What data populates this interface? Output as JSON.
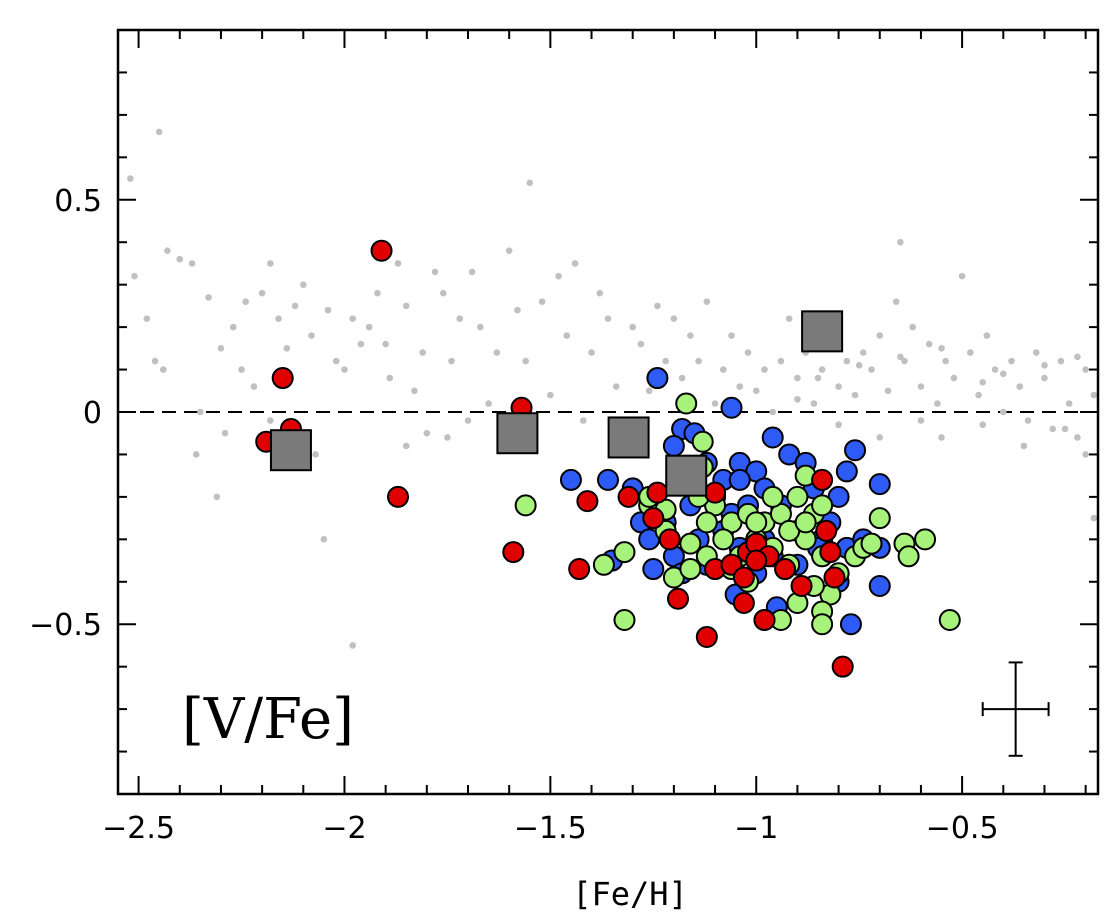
{
  "chart_data": {
    "type": "scatter",
    "title": "",
    "xlabel": "[Fe/H]",
    "ylabel": "",
    "panel_label": "[V/Fe]",
    "xlim": [
      -2.55,
      -0.17
    ],
    "ylim": [
      -0.9,
      0.9
    ],
    "x_ticks": [
      -2.5,
      -2,
      -1.5,
      -1,
      -0.5
    ],
    "x_tick_labels": [
      "−2.5",
      "−2",
      "−1.5",
      "−1",
      "−0.5"
    ],
    "y_ticks": [
      -0.5,
      0,
      0.5
    ],
    "y_tick_labels": [
      "−0.5",
      "0",
      "0.5"
    ],
    "reference_line": {
      "y": 0,
      "style": "dashed"
    },
    "error_bar": {
      "x": -0.37,
      "y": -0.7,
      "xerr": 0.08,
      "yerr": 0.11
    },
    "colors": {
      "background_field": "#c0c0c0",
      "blue": "#2e5bf5",
      "green": "#a6f27a",
      "red": "#e00000",
      "grey_square": "#7a7a7a"
    },
    "series": [
      {
        "marker": "small-dot",
        "color": "#c0c0c0",
        "points": [
          [
            -2.45,
            0.66
          ],
          [
            -2.52,
            0.55
          ],
          [
            -2.51,
            0.32
          ],
          [
            -2.48,
            0.22
          ],
          [
            -2.46,
            0.12
          ],
          [
            -2.44,
            0.1
          ],
          [
            -2.43,
            0.38
          ],
          [
            -2.4,
            0.36
          ],
          [
            -2.37,
            0.35
          ],
          [
            -2.35,
            0.0
          ],
          [
            -2.33,
            0.27
          ],
          [
            -2.3,
            0.15
          ],
          [
            -2.29,
            -0.05
          ],
          [
            -2.31,
            -0.2
          ],
          [
            -2.27,
            0.2
          ],
          [
            -2.25,
            0.1
          ],
          [
            -2.22,
            0.06
          ],
          [
            -2.2,
            0.28
          ],
          [
            -2.18,
            0.35
          ],
          [
            -2.16,
            0.22
          ],
          [
            -2.14,
            0.15
          ],
          [
            -2.12,
            0.25
          ],
          [
            -2.1,
            0.3
          ],
          [
            -2.08,
            0.18
          ],
          [
            -2.07,
            -0.1
          ],
          [
            -2.05,
            -0.3
          ],
          [
            -2.04,
            0.24
          ],
          [
            -2.02,
            0.12
          ],
          [
            -2.0,
            0.1
          ],
          [
            -1.98,
            0.22
          ],
          [
            -1.96,
            0.16
          ],
          [
            -1.94,
            0.2
          ],
          [
            -1.92,
            0.28
          ],
          [
            -1.9,
            0.16
          ],
          [
            -1.89,
            0.08
          ],
          [
            -1.87,
            0.35
          ],
          [
            -1.85,
            0.25
          ],
          [
            -1.83,
            0.05
          ],
          [
            -1.81,
            0.14
          ],
          [
            -1.8,
            -0.05
          ],
          [
            -1.78,
            0.33
          ],
          [
            -1.76,
            0.28
          ],
          [
            -1.74,
            0.12
          ],
          [
            -1.72,
            0.22
          ],
          [
            -1.7,
            -0.02
          ],
          [
            -1.69,
            0.33
          ],
          [
            -1.67,
            0.2
          ],
          [
            -1.65,
            0.02
          ],
          [
            -1.63,
            0.14
          ],
          [
            -1.61,
            -0.05
          ],
          [
            -1.6,
            0.38
          ],
          [
            -1.58,
            0.24
          ],
          [
            -1.56,
            0.12
          ],
          [
            -1.54,
            -0.05
          ],
          [
            -1.52,
            0.26
          ],
          [
            -1.5,
            0.04
          ],
          [
            -1.48,
            0.32
          ],
          [
            -1.46,
            0.18
          ],
          [
            -1.44,
            0.35
          ],
          [
            -1.42,
            -0.02
          ],
          [
            -1.4,
            0.14
          ],
          [
            -1.38,
            0.28
          ],
          [
            -1.36,
            0.22
          ],
          [
            -1.34,
            0.06
          ],
          [
            -1.32,
            -0.05
          ],
          [
            -1.3,
            0.2
          ],
          [
            -1.28,
            0.16
          ],
          [
            -1.26,
            0.05
          ],
          [
            -1.24,
            0.25
          ],
          [
            -1.22,
            0.12
          ],
          [
            -1.2,
            0.22
          ],
          [
            -1.18,
            0.08
          ],
          [
            -1.16,
            0.18
          ],
          [
            -1.14,
            0.12
          ],
          [
            -1.12,
            0.26
          ],
          [
            -1.1,
            0.02
          ],
          [
            -1.08,
            0.1
          ],
          [
            -1.06,
            0.18
          ],
          [
            -1.04,
            0.06
          ],
          [
            -1.02,
            0.14
          ],
          [
            -1.0,
            0.05
          ],
          [
            -0.98,
            0.1
          ],
          [
            -0.96,
            0.0
          ],
          [
            -0.94,
            0.12
          ],
          [
            -0.92,
            0.22
          ],
          [
            -0.9,
            0.08
          ],
          [
            -0.88,
            0.14
          ],
          [
            -0.86,
            0.02
          ],
          [
            -0.84,
            0.1
          ],
          [
            -0.82,
            0.18
          ],
          [
            -0.8,
            0.06
          ],
          [
            -0.78,
            0.12
          ],
          [
            -0.76,
            0.04
          ],
          [
            -0.74,
            0.14
          ],
          [
            -0.72,
            0.1
          ],
          [
            -0.7,
            0.18
          ],
          [
            -0.68,
            0.05
          ],
          [
            -0.66,
            0.26
          ],
          [
            -0.64,
            0.12
          ],
          [
            -0.62,
            0.2
          ],
          [
            -0.6,
            0.06
          ],
          [
            -0.58,
            0.16
          ],
          [
            -0.56,
            0.02
          ],
          [
            -0.54,
            0.12
          ],
          [
            -0.52,
            0.08
          ],
          [
            -0.5,
            0.32
          ],
          [
            -0.48,
            0.14
          ],
          [
            -0.46,
            0.04
          ],
          [
            -0.44,
            0.18
          ],
          [
            -0.42,
            0.1
          ],
          [
            -0.4,
            0.0
          ],
          [
            -0.38,
            0.12
          ],
          [
            -0.36,
            0.06
          ],
          [
            -0.34,
            -0.02
          ],
          [
            -0.32,
            0.14
          ],
          [
            -0.3,
            0.08
          ],
          [
            -0.28,
            -0.04
          ],
          [
            -0.26,
            0.12
          ],
          [
            -0.24,
            0.02
          ],
          [
            -0.22,
            -0.06
          ],
          [
            -0.2,
            0.1
          ],
          [
            -0.18,
            0.04
          ],
          [
            -0.18,
            -0.25
          ],
          [
            -0.8,
            -0.03
          ],
          [
            -0.7,
            -0.06
          ],
          [
            -0.6,
            -0.02
          ],
          [
            -0.55,
            -0.06
          ],
          [
            -0.45,
            -0.03
          ],
          [
            -0.35,
            -0.08
          ],
          [
            -0.25,
            -0.04
          ],
          [
            -0.2,
            -0.1
          ],
          [
            -1.55,
            0.54
          ],
          [
            -1.98,
            -0.55
          ],
          [
            -0.65,
            0.4
          ],
          [
            -0.9,
            0.03
          ],
          [
            -0.85,
            0.08
          ],
          [
            -0.75,
            0.11
          ],
          [
            -0.65,
            0.13
          ],
          [
            -0.55,
            0.15
          ],
          [
            -0.45,
            0.07
          ],
          [
            -0.4,
            0.09
          ],
          [
            -0.3,
            0.11
          ],
          [
            -0.22,
            0.13
          ],
          [
            -1.75,
            -0.06
          ],
          [
            -1.85,
            -0.08
          ],
          [
            -2.18,
            -0.02
          ],
          [
            -2.24,
            0.26
          ],
          [
            -2.36,
            -0.1
          ]
        ]
      },
      {
        "marker": "circle",
        "color": "#2e5bf5",
        "points": [
          [
            -1.24,
            0.08
          ],
          [
            -1.06,
            0.01
          ],
          [
            -1.18,
            -0.04
          ],
          [
            -1.15,
            -0.05
          ],
          [
            -1.2,
            -0.08
          ],
          [
            -1.12,
            -0.12
          ],
          [
            -1.08,
            -0.16
          ],
          [
            -1.04,
            -0.12
          ],
          [
            -1.0,
            -0.14
          ],
          [
            -0.96,
            -0.06
          ],
          [
            -0.92,
            -0.1
          ],
          [
            -0.88,
            -0.12
          ],
          [
            -0.86,
            -0.18
          ],
          [
            -0.8,
            -0.2
          ],
          [
            -0.76,
            -0.09
          ],
          [
            -0.78,
            -0.14
          ],
          [
            -1.45,
            -0.16
          ],
          [
            -1.36,
            -0.16
          ],
          [
            -1.3,
            -0.18
          ],
          [
            -1.28,
            -0.26
          ],
          [
            -1.22,
            -0.26
          ],
          [
            -1.16,
            -0.22
          ],
          [
            -1.1,
            -0.2
          ],
          [
            -1.06,
            -0.24
          ],
          [
            -1.02,
            -0.22
          ],
          [
            -0.98,
            -0.18
          ],
          [
            -0.94,
            -0.22
          ],
          [
            -0.9,
            -0.28
          ],
          [
            -0.84,
            -0.3
          ],
          [
            -0.82,
            -0.26
          ],
          [
            -0.78,
            -0.32
          ],
          [
            -0.74,
            -0.3
          ],
          [
            -0.7,
            -0.32
          ],
          [
            -1.35,
            -0.35
          ],
          [
            -1.25,
            -0.37
          ],
          [
            -1.2,
            -0.34
          ],
          [
            -1.14,
            -0.3
          ],
          [
            -1.08,
            -0.28
          ],
          [
            -1.04,
            -0.32
          ],
          [
            -1.0,
            -0.38
          ],
          [
            -0.96,
            -0.34
          ],
          [
            -0.9,
            -0.36
          ],
          [
            -0.85,
            -0.32
          ],
          [
            -0.8,
            -0.4
          ],
          [
            -1.05,
            -0.43
          ],
          [
            -0.95,
            -0.46
          ],
          [
            -0.77,
            -0.5
          ],
          [
            -0.7,
            -0.41
          ],
          [
            -0.7,
            -0.17
          ],
          [
            -1.12,
            -0.36
          ],
          [
            -1.18,
            -0.38
          ],
          [
            -1.26,
            -0.3
          ],
          [
            -1.04,
            -0.16
          ],
          [
            -0.98,
            -0.3
          ]
        ]
      },
      {
        "marker": "circle",
        "color": "#a6f27a",
        "points": [
          [
            -1.17,
            0.02
          ],
          [
            -1.13,
            -0.07
          ],
          [
            -1.13,
            -0.13
          ],
          [
            -1.1,
            -0.22
          ],
          [
            -1.06,
            -0.26
          ],
          [
            -1.02,
            -0.24
          ],
          [
            -0.98,
            -0.26
          ],
          [
            -0.94,
            -0.24
          ],
          [
            -0.9,
            -0.2
          ],
          [
            -0.88,
            -0.15
          ],
          [
            -0.86,
            -0.24
          ],
          [
            -0.84,
            -0.22
          ],
          [
            -1.56,
            -0.22
          ],
          [
            -1.32,
            -0.33
          ],
          [
            -1.37,
            -0.36
          ],
          [
            -1.32,
            -0.49
          ],
          [
            -1.26,
            -0.22
          ],
          [
            -1.22,
            -0.28
          ],
          [
            -1.2,
            -0.39
          ],
          [
            -1.16,
            -0.37
          ],
          [
            -1.12,
            -0.34
          ],
          [
            -1.08,
            -0.3
          ],
          [
            -1.04,
            -0.34
          ],
          [
            -1.0,
            -0.3
          ],
          [
            -0.96,
            -0.32
          ],
          [
            -0.92,
            -0.36
          ],
          [
            -0.88,
            -0.3
          ],
          [
            -0.84,
            -0.34
          ],
          [
            -0.8,
            -0.38
          ],
          [
            -0.76,
            -0.34
          ],
          [
            -0.74,
            -0.32
          ],
          [
            -0.72,
            -0.31
          ],
          [
            -0.7,
            -0.25
          ],
          [
            -0.64,
            -0.31
          ],
          [
            -0.63,
            -0.34
          ],
          [
            -0.59,
            -0.3
          ],
          [
            -0.53,
            -0.49
          ],
          [
            -0.82,
            -0.43
          ],
          [
            -0.84,
            -0.47
          ],
          [
            -0.84,
            -0.5
          ],
          [
            -0.9,
            -0.45
          ],
          [
            -0.94,
            -0.49
          ],
          [
            -0.98,
            -0.49
          ],
          [
            -1.02,
            -0.4
          ],
          [
            -1.06,
            -0.37
          ],
          [
            -1.12,
            -0.26
          ],
          [
            -1.16,
            -0.31
          ],
          [
            -1.14,
            -0.2
          ],
          [
            -1.22,
            -0.23
          ],
          [
            -1.26,
            -0.2
          ],
          [
            -1.0,
            -0.26
          ],
          [
            -0.96,
            -0.2
          ],
          [
            -0.92,
            -0.28
          ],
          [
            -0.88,
            -0.26
          ],
          [
            -0.86,
            -0.41
          ]
        ]
      },
      {
        "marker": "circle",
        "color": "#e00000",
        "points": [
          [
            -1.91,
            0.38
          ],
          [
            -2.15,
            0.08
          ],
          [
            -2.13,
            -0.04
          ],
          [
            -2.19,
            -0.07
          ],
          [
            -1.87,
            -0.2
          ],
          [
            -1.57,
            0.01
          ],
          [
            -1.59,
            -0.33
          ],
          [
            -1.43,
            -0.37
          ],
          [
            -1.41,
            -0.21
          ],
          [
            -1.31,
            -0.2
          ],
          [
            -1.24,
            -0.19
          ],
          [
            -1.25,
            -0.25
          ],
          [
            -1.21,
            -0.3
          ],
          [
            -1.19,
            -0.44
          ],
          [
            -1.12,
            -0.53
          ],
          [
            -1.1,
            -0.37
          ],
          [
            -1.1,
            -0.19
          ],
          [
            -1.06,
            -0.36
          ],
          [
            -1.03,
            -0.39
          ],
          [
            -1.02,
            -0.33
          ],
          [
            -1.03,
            -0.45
          ],
          [
            -1.0,
            -0.31
          ],
          [
            -0.98,
            -0.49
          ],
          [
            -0.97,
            -0.34
          ],
          [
            -0.93,
            -0.37
          ],
          [
            -0.89,
            -0.41
          ],
          [
            -0.84,
            -0.16
          ],
          [
            -0.83,
            -0.28
          ],
          [
            -0.82,
            -0.33
          ],
          [
            -0.81,
            -0.39
          ],
          [
            -0.79,
            -0.6
          ],
          [
            -1.0,
            -0.35
          ]
        ]
      },
      {
        "marker": "square",
        "color": "#7a7a7a",
        "points": [
          [
            -2.13,
            -0.09
          ],
          [
            -1.58,
            -0.05
          ],
          [
            -1.31,
            -0.06
          ],
          [
            -1.17,
            -0.15
          ],
          [
            -0.84,
            0.19
          ]
        ]
      }
    ]
  }
}
